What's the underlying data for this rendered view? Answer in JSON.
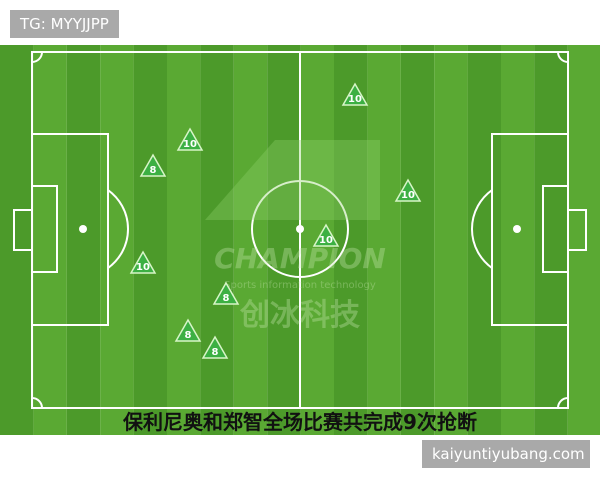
{
  "watermark_top": "TG: MYYJJPP",
  "watermark_bottom": "kaiyuntiyubang.com",
  "logo": {
    "title": "CHAMPION",
    "subtitle": "Sports information technology",
    "brand": "创冰科技"
  },
  "caption": "保利尼奥和郑智全场比赛共完成9次抢断",
  "markers": [
    "10",
    "8",
    "10",
    "10",
    "10",
    "10",
    "8",
    "8",
    "8"
  ]
}
